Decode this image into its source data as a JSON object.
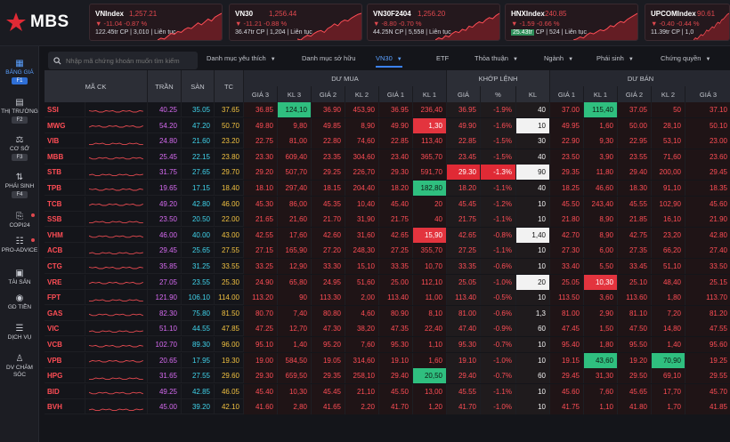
{
  "brand": {
    "name": "MBS"
  },
  "indices": [
    {
      "name": "VNIndex",
      "value": "1,257.21",
      "change": "-11.04  -0.87 %",
      "extra": "122.45tr  CP | 3,010 ",
      "extra2": " | Liên tục",
      "spark": [
        2,
        4,
        3,
        6,
        9,
        8,
        11,
        10,
        13,
        15,
        14,
        17,
        20,
        18,
        21,
        24,
        22,
        26,
        28,
        30
      ]
    },
    {
      "name": "VN30",
      "value": "1,256.44",
      "change": "-11.21  -0.88 %",
      "extra": "36.47tr  CP | 1,204 ",
      "extra2": " | Liên tục",
      "spark": [
        3,
        2,
        5,
        7,
        6,
        9,
        11,
        12,
        10,
        14,
        16,
        19,
        17,
        21,
        23,
        22,
        25,
        27,
        29,
        30
      ]
    },
    {
      "name": "VN30F2404",
      "value": "1,256.20",
      "change": "-8.80  -0.70 %",
      "extra": "44.25N  CP | 5,558 ",
      "extra2": " | Liên tục",
      "spark": [
        4,
        6,
        5,
        8,
        7,
        10,
        12,
        11,
        14,
        13,
        17,
        16,
        19,
        21,
        20,
        23,
        25,
        24,
        27,
        29
      ]
    },
    {
      "name": "HNXIndex",
      "value": "240.85",
      "change": "-1.59  -0.66 %",
      "extra_hl": "25.43tr",
      "extra": " CP | 524 ",
      "extra2": " | Liên tục",
      "spark": [
        2,
        3,
        5,
        4,
        7,
        9,
        8,
        10,
        12,
        11,
        13,
        16,
        15,
        18,
        20,
        19,
        22,
        24,
        26,
        28
      ]
    },
    {
      "name": "UPCOMIndex",
      "value": "90.61",
      "change": "-0.40  -0.44 %",
      "extra": "11.39tr  CP | 1,0",
      "extra2": "",
      "spark": [
        3,
        5,
        4,
        6,
        8,
        7,
        9,
        12,
        11,
        13,
        15,
        14,
        17,
        19,
        18,
        21,
        22,
        24,
        26,
        27
      ]
    }
  ],
  "sidebar": {
    "items": [
      {
        "label": "BẢNG GIÁ",
        "key": "F1",
        "icon": "grid-icon",
        "active": true
      },
      {
        "label": "THỊ TRƯỜNG",
        "key": "F2",
        "icon": "chart-icon"
      },
      {
        "label": "CƠ SỞ",
        "key": "F3",
        "icon": "scale-icon"
      },
      {
        "label": "PHÁI SINH",
        "key": "F4",
        "icon": "derivative-icon"
      },
      {
        "label": "COPI24",
        "icon": "copy-icon",
        "dot": true
      },
      {
        "label": "PRO-ADVICE",
        "icon": "advice-icon",
        "dot": true
      },
      {
        "label": "TÀI SẢN",
        "icon": "wallet-icon"
      },
      {
        "label": "GD TIỀN",
        "icon": "money-icon"
      },
      {
        "label": "DỊCH VỤ",
        "icon": "service-icon"
      },
      {
        "label": "DV CHĂM SÓC",
        "icon": "support-icon"
      }
    ]
  },
  "search": {
    "placeholder": "Nhập mã chứng khoán muốn tìm kiếm"
  },
  "tabs": [
    {
      "label": "Danh mục yêu thích",
      "dd": true
    },
    {
      "label": "Danh mục sở hữu"
    },
    {
      "label": "VN30",
      "dd": true,
      "active": true
    },
    {
      "label": "ETF"
    },
    {
      "label": "Thỏa thuận",
      "dd": true
    },
    {
      "label": "Ngành",
      "dd": true
    },
    {
      "label": "Phái sinh",
      "dd": true
    },
    {
      "label": "Chứng quyền",
      "dd": true
    }
  ],
  "table": {
    "group_headers": {
      "symbol": "MÃ CK",
      "ceil": "TRẦN",
      "floor": "SÀN",
      "ref": "TC",
      "buy": "DƯ MUA",
      "match": "KHỚP LỆNH",
      "sell": "DƯ BÁN"
    },
    "sub_headers": {
      "buy": [
        "GIÁ 3",
        "KL 3",
        "GIÁ 2",
        "KL 2",
        "GIÁ 1",
        "KL 1"
      ],
      "match": [
        "GIÁ",
        "%",
        "KL"
      ],
      "sell": [
        "GIÁ 1",
        "KL 1",
        "GIÁ 2",
        "KL 2",
        "GIÁ 3"
      ]
    },
    "rows": [
      {
        "sym": "SSI",
        "c": "red",
        "ceil": "40.25",
        "floor": "35.05",
        "ref": "37.65",
        "buy": [
          "36.85",
          "124,10",
          "36.90",
          "453,90",
          "36.95",
          "236,40"
        ],
        "match": [
          "36.95",
          "-1.9%",
          "40"
        ],
        "sell": [
          "37.00",
          "115,40",
          "37.05",
          "50",
          "37.10"
        ],
        "hl": {
          "b1": "g",
          "s1": "g"
        }
      },
      {
        "sym": "MWG",
        "c": "red",
        "ceil": "54.20",
        "floor": "47.20",
        "ref": "50.70",
        "buy": [
          "49.80",
          "9,80",
          "49.85",
          "8,90",
          "49.90",
          "1,30"
        ],
        "match": [
          "49.90",
          "-1.6%",
          "10"
        ],
        "sell": [
          "49.95",
          "1,60",
          "50.00",
          "28,10",
          "50.10"
        ],
        "hl": {
          "b5": "r",
          "m2": "w"
        }
      },
      {
        "sym": "VIB",
        "c": "red",
        "ceil": "24.80",
        "floor": "21.60",
        "ref": "23.20",
        "buy": [
          "22.75",
          "81,00",
          "22.80",
          "74,60",
          "22.85",
          "113,40"
        ],
        "match": [
          "22.85",
          "-1.5%",
          "30"
        ],
        "sell": [
          "22.90",
          "9,30",
          "22.95",
          "53,10",
          "23.00"
        ]
      },
      {
        "sym": "MBB",
        "c": "red",
        "ceil": "25.45",
        "floor": "22.15",
        "ref": "23.80",
        "buy": [
          "23.30",
          "609,40",
          "23.35",
          "304,60",
          "23.40",
          "365,70"
        ],
        "match": [
          "23.45",
          "-1.5%",
          "40"
        ],
        "sell": [
          "23.50",
          "3,90",
          "23.55",
          "71,60",
          "23.60"
        ]
      },
      {
        "sym": "STB",
        "c": "red",
        "ceil": "31.75",
        "floor": "27.65",
        "ref": "29.70",
        "buy": [
          "29.20",
          "507,70",
          "29.25",
          "226,70",
          "29.30",
          "591,70"
        ],
        "match": [
          "29.30",
          "-1.3%",
          "90"
        ],
        "sell": [
          "29.35",
          "11,80",
          "29.40",
          "200,00",
          "29.45"
        ],
        "hl": {
          "m0": "rr",
          "m1": "rr",
          "m2": "w"
        }
      },
      {
        "sym": "TPB",
        "c": "red",
        "ceil": "19.65",
        "floor": "17.15",
        "ref": "18.40",
        "buy": [
          "18.10",
          "297,40",
          "18.15",
          "204,40",
          "18.20",
          "182,80"
        ],
        "match": [
          "18.20",
          "-1.1%",
          "40"
        ],
        "sell": [
          "18.25",
          "46,60",
          "18.30",
          "91,10",
          "18.35"
        ],
        "hl": {
          "b5": "g"
        }
      },
      {
        "sym": "TCB",
        "c": "red",
        "ceil": "49.20",
        "floor": "42.80",
        "ref": "46.00",
        "buy": [
          "45.30",
          "86,00",
          "45.35",
          "10,40",
          "45.40",
          "20"
        ],
        "match": [
          "45.45",
          "-1.2%",
          "10"
        ],
        "sell": [
          "45.50",
          "243,40",
          "45.55",
          "102,90",
          "45.60"
        ]
      },
      {
        "sym": "SSB",
        "c": "red",
        "ceil": "23.50",
        "floor": "20.50",
        "ref": "22.00",
        "buy": [
          "21.65",
          "21,60",
          "21.70",
          "31,90",
          "21.75",
          "40"
        ],
        "match": [
          "21.75",
          "-1.1%",
          "10"
        ],
        "sell": [
          "21.80",
          "8,90",
          "21.85",
          "16,10",
          "21.90"
        ]
      },
      {
        "sym": "VHM",
        "c": "red",
        "ceil": "46.00",
        "floor": "40.00",
        "ref": "43.00",
        "buy": [
          "42.55",
          "17,60",
          "42.60",
          "31,60",
          "42.65",
          "15,90"
        ],
        "match": [
          "42.65",
          "-0.8%",
          "1,40"
        ],
        "sell": [
          "42.70",
          "8,90",
          "42.75",
          "23,20",
          "42.80"
        ],
        "hl": {
          "b5": "r",
          "m2": "w"
        }
      },
      {
        "sym": "ACB",
        "c": "red",
        "ceil": "29.45",
        "floor": "25.65",
        "ref": "27.55",
        "buy": [
          "27.15",
          "165,90",
          "27.20",
          "248,30",
          "27.25",
          "355,70"
        ],
        "match": [
          "27.25",
          "-1.1%",
          "10"
        ],
        "sell": [
          "27.30",
          "6,00",
          "27.35",
          "66,20",
          "27.40"
        ]
      },
      {
        "sym": "CTG",
        "c": "red",
        "ceil": "35.85",
        "floor": "31.25",
        "ref": "33.55",
        "buy": [
          "33.25",
          "12,90",
          "33.30",
          "15,10",
          "33.35",
          "10,70"
        ],
        "match": [
          "33.35",
          "-0.6%",
          "10"
        ],
        "sell": [
          "33.40",
          "5,50",
          "33.45",
          "51,10",
          "33.50"
        ]
      },
      {
        "sym": "VRE",
        "c": "red",
        "ceil": "27.05",
        "floor": "23.55",
        "ref": "25.30",
        "buy": [
          "24.90",
          "65,80",
          "24.95",
          "51,60",
          "25.00",
          "112,10"
        ],
        "match": [
          "25.05",
          "-1.0%",
          "20"
        ],
        "sell": [
          "25.05",
          "10,30",
          "25.10",
          "48,40",
          "25.15"
        ],
        "hl": {
          "m2": "w",
          "s1": "r"
        }
      },
      {
        "sym": "FPT",
        "c": "red",
        "ceil": "121.90",
        "floor": "106.10",
        "ref": "114.00",
        "buy": [
          "113.20",
          "90",
          "113.30",
          "2,00",
          "113.40",
          "11,00"
        ],
        "match": [
          "113.40",
          "-0.5%",
          "10"
        ],
        "sell": [
          "113.50",
          "3,60",
          "113.60",
          "1,80",
          "113.70"
        ]
      },
      {
        "sym": "GAS",
        "c": "red",
        "ceil": "82.30",
        "floor": "75.80",
        "ref": "81.50",
        "buy": [
          "80.70",
          "7,40",
          "80.80",
          "4,60",
          "80.90",
          "8,10"
        ],
        "match": [
          "81.00",
          "-0.6%",
          "1,3"
        ],
        "sell": [
          "81.00",
          "2,90",
          "81.10",
          "7,20",
          "81.20"
        ]
      },
      {
        "sym": "VIC",
        "c": "red",
        "ceil": "51.10",
        "floor": "44.55",
        "ref": "47.85",
        "buy": [
          "47.25",
          "12,70",
          "47.30",
          "38,20",
          "47.35",
          "22,40"
        ],
        "match": [
          "47.40",
          "-0.9%",
          "60"
        ],
        "sell": [
          "47.45",
          "1,50",
          "47.50",
          "14,80",
          "47.55"
        ]
      },
      {
        "sym": "VCB",
        "c": "red",
        "ceil": "102.70",
        "floor": "89.30",
        "ref": "96.00",
        "buy": [
          "95.10",
          "1,40",
          "95.20",
          "7,60",
          "95.30",
          "1,10"
        ],
        "match": [
          "95.30",
          "-0.7%",
          "10"
        ],
        "sell": [
          "95.40",
          "1,80",
          "95.50",
          "1,40",
          "95.60"
        ]
      },
      {
        "sym": "VPB",
        "c": "red",
        "ceil": "20.65",
        "floor": "17.95",
        "ref": "19.30",
        "buy": [
          "19.00",
          "584,50",
          "19.05",
          "314,60",
          "19.10",
          "1,60"
        ],
        "match": [
          "19.10",
          "-1.0%",
          "10"
        ],
        "sell": [
          "19.15",
          "43,60",
          "19.20",
          "70,90",
          "19.25"
        ],
        "hl": {
          "s1": "g",
          "s3": "g"
        }
      },
      {
        "sym": "HPG",
        "c": "red",
        "ceil": "31.65",
        "floor": "27.55",
        "ref": "29.60",
        "buy": [
          "29.30",
          "659,50",
          "29.35",
          "258,10",
          "29.40",
          "20,50"
        ],
        "match": [
          "29.40",
          "-0.7%",
          "60"
        ],
        "sell": [
          "29.45",
          "31,30",
          "29.50",
          "69,10",
          "29.55"
        ],
        "hl": {
          "b5": "g"
        }
      },
      {
        "sym": "BID",
        "c": "red",
        "ceil": "49.25",
        "floor": "42.85",
        "ref": "46.05",
        "buy": [
          "45.40",
          "10,30",
          "45.45",
          "21,10",
          "45.50",
          "13,00"
        ],
        "match": [
          "45.55",
          "-1.1%",
          "10"
        ],
        "sell": [
          "45.60",
          "7,60",
          "45.65",
          "17,70",
          "45.70"
        ]
      },
      {
        "sym": "BVH",
        "c": "red",
        "ceil": "45.00",
        "floor": "39.20",
        "ref": "42.10",
        "buy": [
          "41.60",
          "2,80",
          "41.65",
          "2,20",
          "41.70",
          "1,20"
        ],
        "match": [
          "41.70",
          "-1.0%",
          "10"
        ],
        "sell": [
          "41.75",
          "1,10",
          "41.80",
          "1,70",
          "41.85"
        ]
      }
    ]
  },
  "colors": {
    "accent": "#3b82f6",
    "down": "#ff4d55",
    "up": "#2fd68b",
    "ceil": "#d66af0",
    "floor": "#3fd2ea",
    "ref": "#f0c040"
  }
}
